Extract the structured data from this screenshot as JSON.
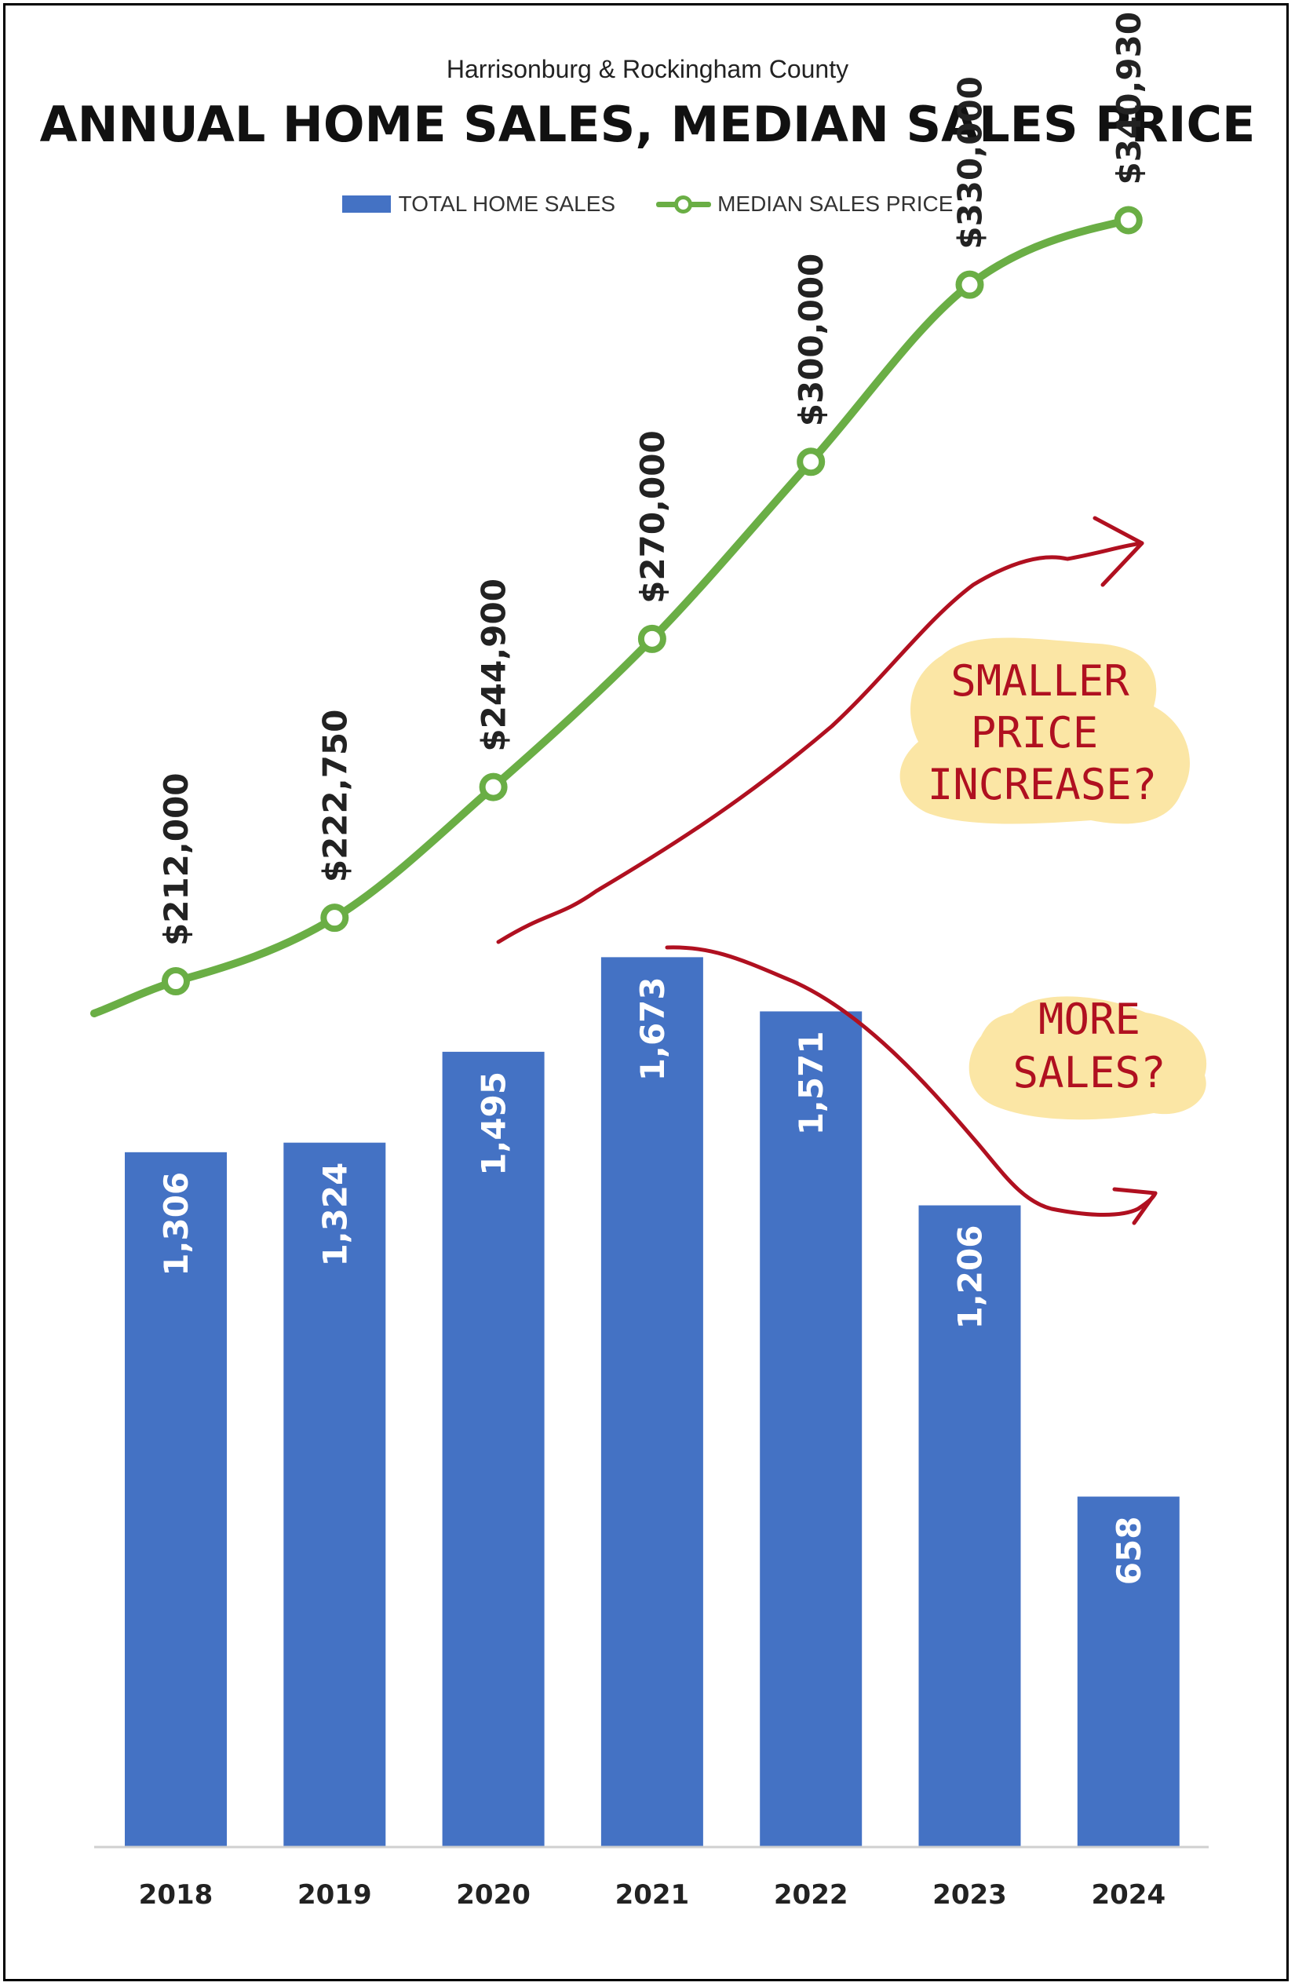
{
  "colors": {
    "bar": "#4472c4",
    "line": "#6aae45",
    "annotation": "#b01020",
    "highlight": "#fbe6a5",
    "text": "#222222"
  },
  "chart_data": {
    "type": "bar",
    "subtitle": "Harrisonburg & Rockingham County",
    "title": "ANNUAL HOME SALES, MEDIAN SALES PRICE",
    "categories": [
      "2018",
      "2019",
      "2020",
      "2021",
      "2022",
      "2023",
      "2024"
    ],
    "series": [
      {
        "name": "TOTAL HOME SALES",
        "type": "bar",
        "values": [
          1306,
          1324,
          1495,
          1673,
          1571,
          1206,
          658
        ],
        "labels": [
          "1,306",
          "1,324",
          "1,495",
          "1,673",
          "1,571",
          "1,206",
          "658"
        ]
      },
      {
        "name": "MEDIAN SALES PRICE",
        "type": "line",
        "values": [
          212000,
          222750,
          244900,
          270000,
          300000,
          330000,
          340930
        ],
        "labels": [
          "$212,000",
          "$222,750",
          "$244,900",
          "$270,000",
          "$300,000",
          "$330,000",
          "$340,930"
        ]
      }
    ],
    "legend": "top-center",
    "grid": false,
    "annotations": [
      {
        "lines": [
          "SMALLER",
          "PRICE",
          "INCREASE?"
        ]
      },
      {
        "lines": [
          "MORE",
          "SALES?"
        ]
      }
    ]
  }
}
